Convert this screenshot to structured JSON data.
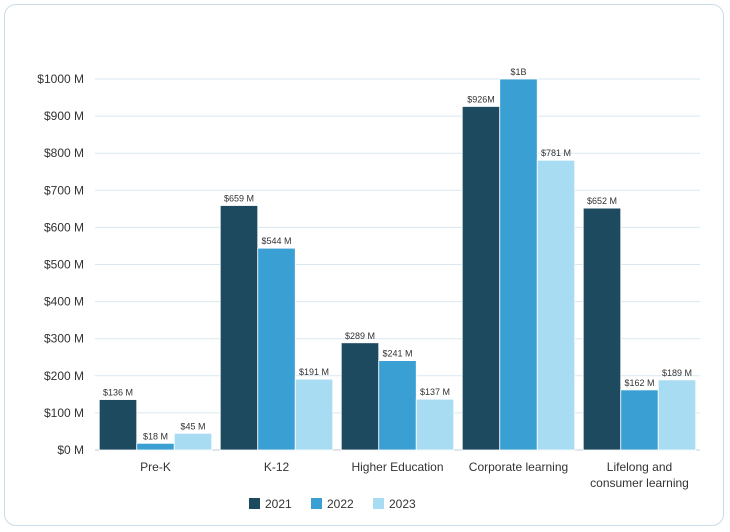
{
  "chart_data": {
    "type": "bar",
    "categories": [
      "Pre-K",
      "K-12",
      "Higher Education",
      "Corporate learning",
      "Lifelong and consumer learning"
    ],
    "category_lines": [
      [
        "Pre-K"
      ],
      [
        "K-12"
      ],
      [
        "Higher Education"
      ],
      [
        "Corporate learning"
      ],
      [
        "Lifelong and",
        "consumer learning"
      ]
    ],
    "series": [
      {
        "name": "2021",
        "color": "#1d4a5e",
        "values": [
          136,
          659,
          289,
          926,
          652
        ],
        "labels": [
          "$136 M",
          "$659 M",
          "$289 M",
          "$926M",
          "$652 M"
        ]
      },
      {
        "name": "2022",
        "color": "#3aa0d4",
        "values": [
          18,
          544,
          241,
          1000,
          162
        ],
        "labels": [
          "$18 M",
          "$544 M",
          "$241 M",
          "$1B",
          "$162 M"
        ]
      },
      {
        "name": "2023",
        "color": "#a8dcf3",
        "values": [
          45,
          191,
          137,
          781,
          189
        ],
        "labels": [
          "$45 M",
          "$191 M",
          "$137 M",
          "$781 M",
          "$189 M"
        ]
      }
    ],
    "yticks": [
      0,
      100,
      200,
      300,
      400,
      500,
      600,
      700,
      800,
      900,
      1000
    ],
    "ytick_labels": [
      "$0 M",
      "$100 M",
      "$200 M",
      "$300 M",
      "$400 M",
      "$500 M",
      "$600 M",
      "$700 M",
      "$800 M",
      "$900 M",
      "$1000 M"
    ],
    "ylim": [
      0,
      1000
    ],
    "grid": true,
    "legend_position": "bottom"
  }
}
